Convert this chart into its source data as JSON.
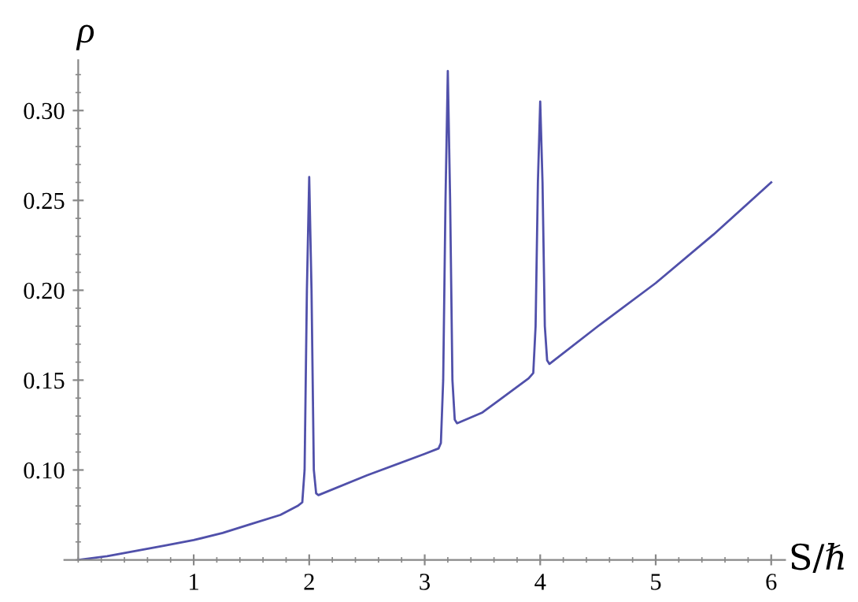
{
  "chart_data": {
    "type": "line",
    "xlabel": "S/ℏ",
    "ylabel": "ρ",
    "series": [
      {
        "color": "#5050aa",
        "x": [
          0,
          0.25,
          0.5,
          0.75,
          1,
          1.25,
          1.5,
          1.75,
          1.9,
          1.94,
          1.96,
          1.98,
          2.0,
          2.02,
          2.04,
          2.06,
          2.08,
          2.5,
          3.0,
          3.12,
          3.14,
          3.16,
          3.18,
          3.2,
          3.22,
          3.24,
          3.26,
          3.28,
          3.5,
          3.9,
          3.94,
          3.96,
          3.98,
          4.0,
          4.02,
          4.04,
          4.06,
          4.08,
          4.5,
          5,
          5.5,
          6
        ],
        "values": [
          0.05,
          0.052,
          0.055,
          0.058,
          0.061,
          0.065,
          0.07,
          0.075,
          0.08,
          0.082,
          0.1,
          0.2,
          0.263,
          0.2,
          0.1,
          0.087,
          0.086,
          0.097,
          0.109,
          0.112,
          0.115,
          0.15,
          0.25,
          0.322,
          0.25,
          0.15,
          0.128,
          0.126,
          0.132,
          0.151,
          0.154,
          0.18,
          0.26,
          0.305,
          0.26,
          0.18,
          0.161,
          0.159,
          0.18,
          0.204,
          0.231,
          0.26
        ]
      }
    ],
    "xlim": [
      -0.12,
      6.12
    ],
    "ylim": [
      0.05,
      0.328
    ],
    "xticks": [
      1,
      2,
      3,
      4,
      5,
      6
    ],
    "yticks": [
      {
        "value": 0.1,
        "label": "0.10"
      },
      {
        "value": 0.15,
        "label": "0.15"
      },
      {
        "value": 0.2,
        "label": "0.20"
      },
      {
        "value": 0.25,
        "label": "0.25"
      },
      {
        "value": 0.3,
        "label": "0.30"
      }
    ],
    "grid": false,
    "legend": false,
    "marker": "none",
    "line_style": "solid"
  }
}
